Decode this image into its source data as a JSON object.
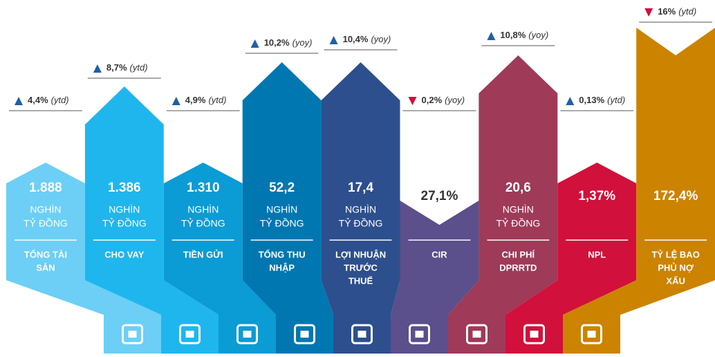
{
  "items": [
    {
      "direction": "up",
      "change": "4,4%",
      "period": "(ytd)",
      "value": "1.888",
      "unit": [
        "NGHÌN",
        "TỶ ĐỒNG"
      ],
      "label": [
        "TỔNG TÀI",
        "SẢN"
      ],
      "color": "#6dcff6"
    },
    {
      "direction": "up",
      "change": "8,7%",
      "period": "(ytd)",
      "value": "1.386",
      "unit": [
        "NGHÌN",
        "TỶ ĐỒNG"
      ],
      "label": [
        "CHO VAY"
      ],
      "color": "#1fb6ee"
    },
    {
      "direction": "up",
      "change": "4,9%",
      "period": "(ytd)",
      "value": "1.310",
      "unit": [
        "NGHÌN",
        "TỶ ĐỒNG"
      ],
      "label": [
        "TIỀN GỬI"
      ],
      "color": "#0b9bd5"
    },
    {
      "direction": "up",
      "change": "10,2%",
      "period": "(yoy)",
      "value": "52,2",
      "unit": [
        "NGHÌN",
        "TỶ ĐỒNG"
      ],
      "label": [
        "TỔNG THU",
        "NHẬP"
      ],
      "color": "#0077b1"
    },
    {
      "direction": "up",
      "change": "10,4%",
      "period": "(yoy)",
      "value": "17,4",
      "unit": [
        "NGHÌN",
        "TỶ ĐỒNG"
      ],
      "label": [
        "LỢI NHUẬN",
        "TRƯỚC",
        "THUẾ"
      ],
      "color": "#2e4f8d"
    },
    {
      "direction": "down",
      "change": "0,2%",
      "period": "(yoy)",
      "value": "27,1%",
      "unit": [],
      "label": [
        "CIR"
      ],
      "color": "#5b4f8c"
    },
    {
      "direction": "up",
      "change": "10,8%",
      "period": "(yoy)",
      "value": "20,6",
      "unit": [
        "NGHÌN",
        "TỶ ĐỒNG"
      ],
      "label": [
        "CHI PHÍ",
        "DPRRTD"
      ],
      "color": "#9f3a59"
    },
    {
      "direction": "up",
      "change": "0,13%",
      "period": "(ytd)",
      "value": "1,37%",
      "unit": [],
      "label": [
        "NPL"
      ],
      "color": "#d1103b"
    },
    {
      "direction": "down",
      "change": "16%",
      "period": "(ytd)",
      "value": "172,4%",
      "unit": [],
      "label": [
        "TỶ LỆ BAO",
        "PHỦ NỢ",
        "XẤU"
      ],
      "color": "#cc8300"
    }
  ]
}
